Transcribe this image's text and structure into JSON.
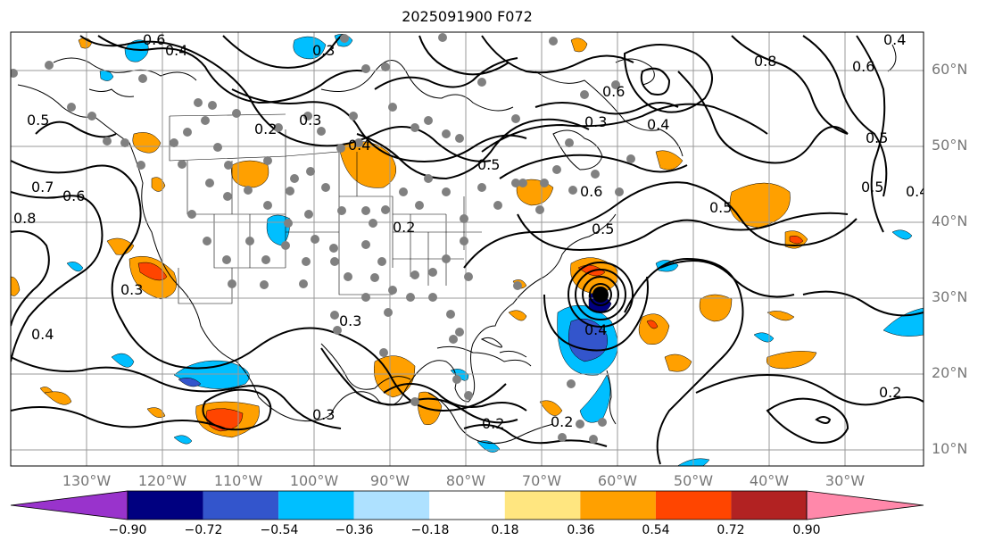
{
  "title": "2025091900 F072",
  "lat_labels": [
    "60°N",
    "50°N",
    "40°N",
    "30°N",
    "20°N",
    "10°N"
  ],
  "lon_labels": [
    "130°W",
    "120°W",
    "110°W",
    "100°W",
    "90°W",
    "80°W",
    "70°W",
    "60°W",
    "50°W",
    "40°W",
    "30°W"
  ],
  "colorbar": {
    "ticks": [
      "−0.90",
      "−0.72",
      "−0.54",
      "−0.36",
      "−0.18",
      "0.18",
      "0.36",
      "0.54",
      "0.72",
      "0.90"
    ],
    "colors": [
      "#9933cc",
      "#000080",
      "#3355cc",
      "#00bfff",
      "#aee1ff",
      "#ffffff",
      "#ffe680",
      "#ffa000",
      "#ff4500",
      "#b22222",
      "#ff88aa"
    ]
  },
  "contour_labels": [
    "0.6",
    "0.4",
    "0.3",
    "0.5",
    "0.2",
    "0.3",
    "0.4",
    "0.6",
    "0.3",
    "0.4",
    "0.8",
    "0.6",
    "0.5",
    "0.4",
    "0.5",
    "0.7",
    "0.6",
    "0.8",
    "0.6",
    "0.2",
    "0.5",
    "0.5",
    "0.5",
    "0.4",
    "0.3",
    "0.4",
    "0.3",
    "0.2",
    "0.2",
    "0.3",
    "0.2",
    "0.4"
  ],
  "map_features": {
    "center_marker": "low-pressure-center",
    "station_markers": "gray-observation-dots"
  }
}
